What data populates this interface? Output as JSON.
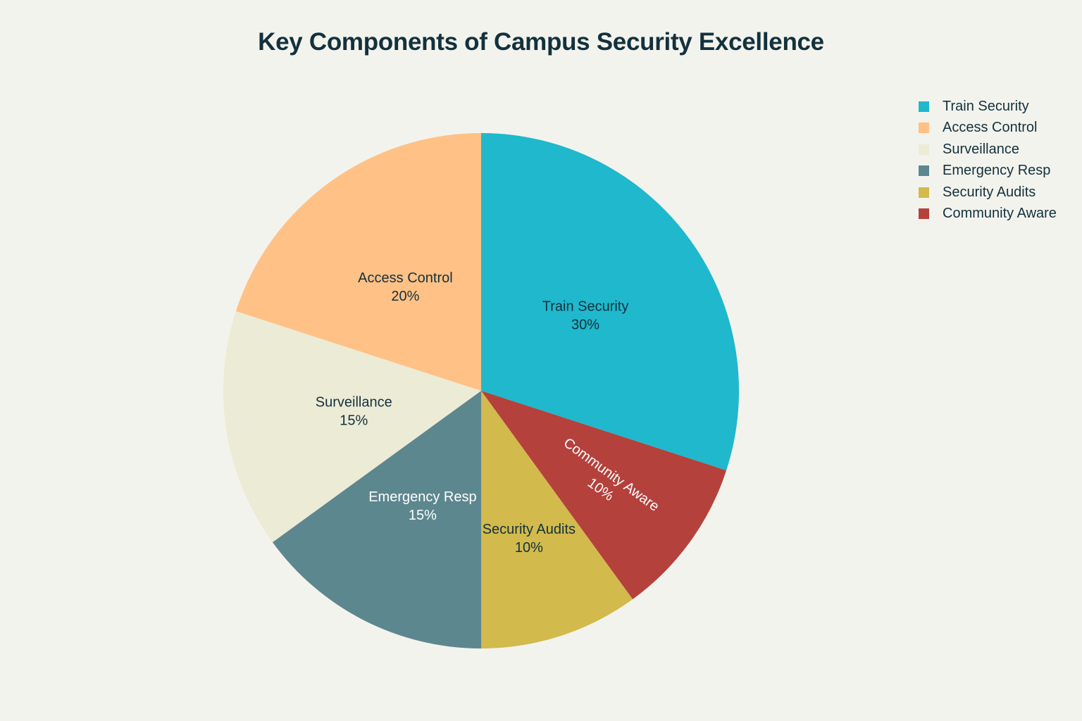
{
  "chart_data": {
    "type": "pie",
    "title": "Key Components of Campus Security Excellence",
    "legend_position": "top-right",
    "slices": [
      {
        "label": "Train Security",
        "value": 30,
        "value_label": "30%",
        "color": "#1fb8cd",
        "label_color": "#13313d"
      },
      {
        "label": "Community Aware",
        "value": 10,
        "value_label": "10%",
        "color": "#b4413c",
        "label_color": "#ffffff"
      },
      {
        "label": "Security Audits",
        "value": 10,
        "value_label": "10%",
        "color": "#d2ba4c",
        "label_color": "#13313d"
      },
      {
        "label": "Emergency Resp",
        "value": 15,
        "value_label": "15%",
        "color": "#5d878f",
        "label_color": "#ffffff"
      },
      {
        "label": "Surveillance",
        "value": 15,
        "value_label": "15%",
        "color": "#ecebd5",
        "label_color": "#13313d"
      },
      {
        "label": "Access Control",
        "value": 20,
        "value_label": "20%",
        "color": "#ffc185",
        "label_color": "#13313d"
      }
    ],
    "legend": [
      {
        "label": "Train Security",
        "color": "#1fb8cd"
      },
      {
        "label": "Access Control",
        "color": "#ffc185"
      },
      {
        "label": "Surveillance",
        "color": "#ecebd5"
      },
      {
        "label": "Emergency Resp",
        "color": "#5d878f"
      },
      {
        "label": "Security Audits",
        "color": "#d2ba4c"
      },
      {
        "label": "Community Aware",
        "color": "#b4413c"
      }
    ]
  }
}
